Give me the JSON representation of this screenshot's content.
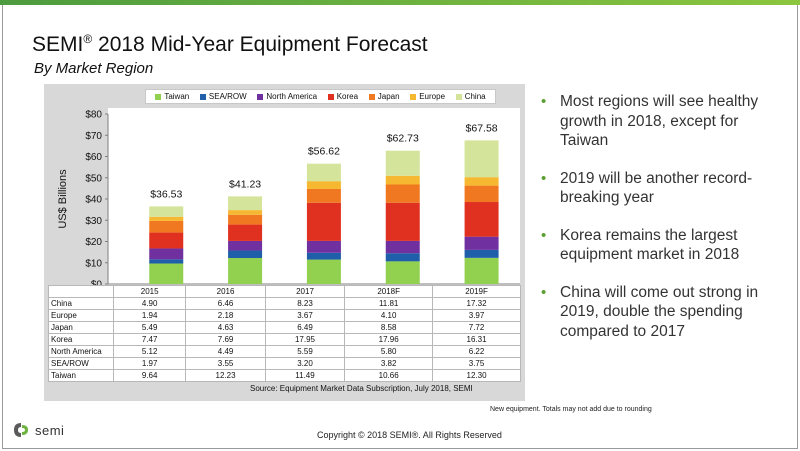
{
  "title_main": "SEMI",
  "title_reg": "®",
  "title_rest": " 2018 Mid-Year Equipment Forecast",
  "subtitle": "By Market Region",
  "colors": {
    "Taiwan": "#92d050",
    "SEA/ROW": "#1f5ea8",
    "North America": "#7030a0",
    "Korea": "#e03020",
    "Japan": "#f07820",
    "Europe": "#f5b830",
    "China": "#d4e49a",
    "accent": "#5c9e31"
  },
  "chart_data": {
    "type": "bar",
    "stacked": true,
    "categories": [
      "2015",
      "2016",
      "2017",
      "2018F",
      "2019F"
    ],
    "series": [
      {
        "name": "Taiwan",
        "values": [
          9.64,
          12.23,
          11.49,
          10.66,
          12.3
        ]
      },
      {
        "name": "SEA/ROW",
        "values": [
          1.97,
          3.55,
          3.2,
          3.82,
          3.75
        ]
      },
      {
        "name": "North America",
        "values": [
          5.12,
          4.49,
          5.59,
          5.8,
          6.22
        ]
      },
      {
        "name": "Korea",
        "values": [
          7.47,
          7.69,
          17.95,
          17.96,
          16.31
        ]
      },
      {
        "name": "Japan",
        "values": [
          5.49,
          4.63,
          6.49,
          8.58,
          7.72
        ]
      },
      {
        "name": "Europe",
        "values": [
          1.94,
          2.18,
          3.67,
          4.1,
          3.97
        ]
      },
      {
        "name": "China",
        "values": [
          4.9,
          6.46,
          8.23,
          11.81,
          17.32
        ]
      }
    ],
    "totals": [
      "$36.53",
      "$41.23",
      "$56.62",
      "$62.73",
      "$67.58"
    ],
    "ylabel": "US$ Billions",
    "ylim": [
      0,
      80
    ],
    "yticks": [
      "$0",
      "$10",
      "$20",
      "$30",
      "$40",
      "$50",
      "$60",
      "$70",
      "$80"
    ],
    "legend": [
      "Taiwan",
      "SEA/ROW",
      "North America",
      "Korea",
      "Japan",
      "Europe",
      "China"
    ],
    "table_rows": [
      {
        "label": "China",
        "values": [
          "4.90",
          "6.46",
          "8.23",
          "11.81",
          "17.32"
        ]
      },
      {
        "label": "Europe",
        "values": [
          "1.94",
          "2.18",
          "3.67",
          "4.10",
          "3.97"
        ]
      },
      {
        "label": "Japan",
        "values": [
          "5.49",
          "4.63",
          "6.49",
          "8.58",
          "7.72"
        ]
      },
      {
        "label": "Korea",
        "values": [
          "7.47",
          "7.69",
          "17.95",
          "17.96",
          "16.31"
        ]
      },
      {
        "label": "North America",
        "values": [
          "5.12",
          "4.49",
          "5.59",
          "5.80",
          "6.22"
        ]
      },
      {
        "label": "SEA/ROW",
        "values": [
          "1.97",
          "3.55",
          "3.20",
          "3.82",
          "3.75"
        ]
      },
      {
        "label": "Taiwan",
        "values": [
          "9.64",
          "12.23",
          "11.49",
          "10.66",
          "12.30"
        ]
      }
    ]
  },
  "source": "Source: Equipment Market Data Subscription, July 2018, SEMI",
  "bullets": [
    "Most regions will see healthy growth in 2018, except for Taiwan",
    "2019 will be another record-breaking year",
    "Korea remains the largest equipment market in 2018",
    "China will come out strong in 2019, double the spending compared to 2017"
  ],
  "footnote": "New equipment. Totals may not add due to rounding",
  "copyright": "Copyright © 2018 SEMI®. All Rights Reserved",
  "logo_text": "semi"
}
